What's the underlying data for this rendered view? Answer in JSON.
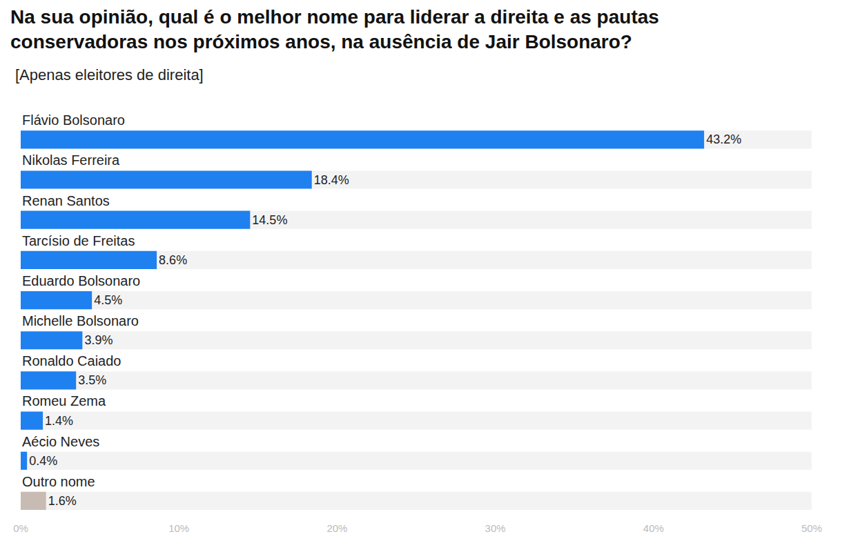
{
  "chart_data": {
    "type": "bar",
    "orientation": "horizontal",
    "title": "Na sua opinião, qual é o melhor nome para liderar a direita e as pautas conservadoras nos próximos anos, na ausência de Jair Bolsonaro?",
    "subtitle": "[Apenas eleitores de direita]",
    "categories": [
      "Flávio Bolsonaro",
      "Nikolas Ferreira",
      "Renan Santos",
      "Tarcísio de Freitas",
      "Eduardo Bolsonaro",
      "Michelle Bolsonaro",
      "Ronaldo Caiado",
      "Romeu Zema",
      "Aécio Neves",
      "Outro nome"
    ],
    "values": [
      43.2,
      18.4,
      14.5,
      8.6,
      4.5,
      3.9,
      3.5,
      1.4,
      0.4,
      1.6
    ],
    "value_labels": [
      "43.2%",
      "18.4%",
      "14.5%",
      "8.6%",
      "4.5%",
      "3.9%",
      "3.5%",
      "1.4%",
      "0.4%",
      "1.6%"
    ],
    "colors": [
      "#1f80f0",
      "#1f80f0",
      "#1f80f0",
      "#1f80f0",
      "#1f80f0",
      "#1f80f0",
      "#1f80f0",
      "#1f80f0",
      "#1f80f0",
      "#c8bbb3"
    ],
    "xlim": [
      0,
      50
    ],
    "xticks": [
      {
        "value": 0,
        "label": "0%"
      },
      {
        "value": 10,
        "label": "10%"
      },
      {
        "value": 20,
        "label": "20%"
      },
      {
        "value": 30,
        "label": "30%"
      },
      {
        "value": 40,
        "label": "40%"
      },
      {
        "value": 50,
        "label": "50%"
      }
    ],
    "grid": false,
    "data_labels": true,
    "tick_labels": "x"
  }
}
